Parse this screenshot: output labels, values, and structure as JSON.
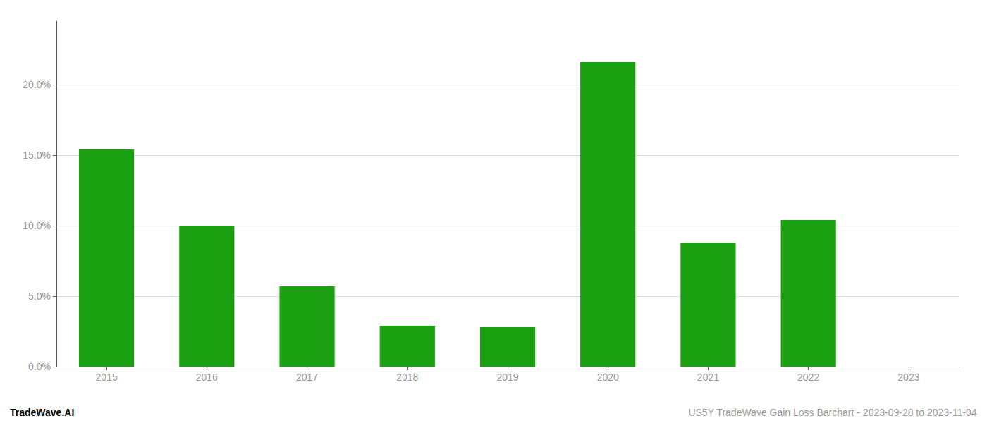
{
  "chart_data": {
    "type": "bar",
    "categories": [
      "2015",
      "2016",
      "2017",
      "2018",
      "2019",
      "2020",
      "2021",
      "2022",
      "2023"
    ],
    "values": [
      0.154,
      0.1,
      0.057,
      0.029,
      0.028,
      0.216,
      0.088,
      0.104,
      0.0
    ],
    "color": "#1aa010",
    "ylim": [
      0.0,
      0.245
    ],
    "yticks": [
      {
        "value": 0.0,
        "label": "0.0%"
      },
      {
        "value": 0.05,
        "label": "5.0%"
      },
      {
        "value": 0.1,
        "label": "10.0%"
      },
      {
        "value": 0.15,
        "label": "15.0%"
      },
      {
        "value": 0.2,
        "label": "20.0%"
      }
    ],
    "grid": true,
    "annotations": [
      "TradeWave.AI",
      "US5Y TradeWave Gain Loss Barchart - 2023-09-28 to 2023-11-04"
    ]
  }
}
